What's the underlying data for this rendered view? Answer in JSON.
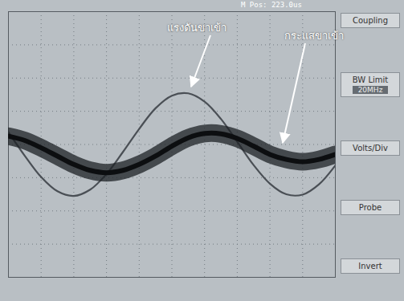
{
  "chart_data": {
    "type": "line",
    "x": [
      0,
      0.5,
      1,
      1.5,
      2,
      2.5,
      3,
      3.5,
      4,
      4.5,
      5,
      5.5,
      6,
      6.5,
      7,
      7.5,
      8,
      8.5,
      9,
      9.5,
      10
    ],
    "series": [
      {
        "name": "แรงดันขาเข้า",
        "color": "#4a4f55",
        "values": [
          0.37,
          -0.34,
          -0.98,
          -1.41,
          -1.55,
          -1.36,
          -0.89,
          -0.23,
          0.47,
          1.09,
          1.47,
          1.54,
          1.29,
          0.77,
          0.08,
          -0.62,
          -1.18,
          -1.5,
          -1.51,
          -1.2,
          -0.63
        ]
      },
      {
        "name": "กระแสขาเข้า",
        "color": "#1e2226",
        "values": [
          0.25,
          0.12,
          -0.1,
          -0.35,
          -0.6,
          -0.78,
          -0.85,
          -0.78,
          -0.6,
          -0.35,
          -0.05,
          0.2,
          0.33,
          0.32,
          0.18,
          -0.05,
          -0.3,
          -0.45,
          -0.52,
          -0.45,
          -0.3
        ]
      }
    ],
    "xlim": [
      0,
      10
    ],
    "ylim": [
      -4,
      4
    ],
    "xticks": [
      0,
      1,
      2,
      3,
      4,
      5,
      6,
      7,
      8,
      9,
      10
    ],
    "yticks": [
      -4,
      -3,
      -2,
      -1,
      0,
      1,
      2,
      3,
      4
    ],
    "grid": true,
    "tick_labels": false,
    "header": "M Pos: 223.0us",
    "panel_labels": [
      [
        "Coupling"
      ],
      [
        "BW Limit",
        "20MHz"
      ],
      [
        "Volts/Div"
      ],
      [
        "Probe"
      ],
      [
        "Invert"
      ]
    ]
  }
}
